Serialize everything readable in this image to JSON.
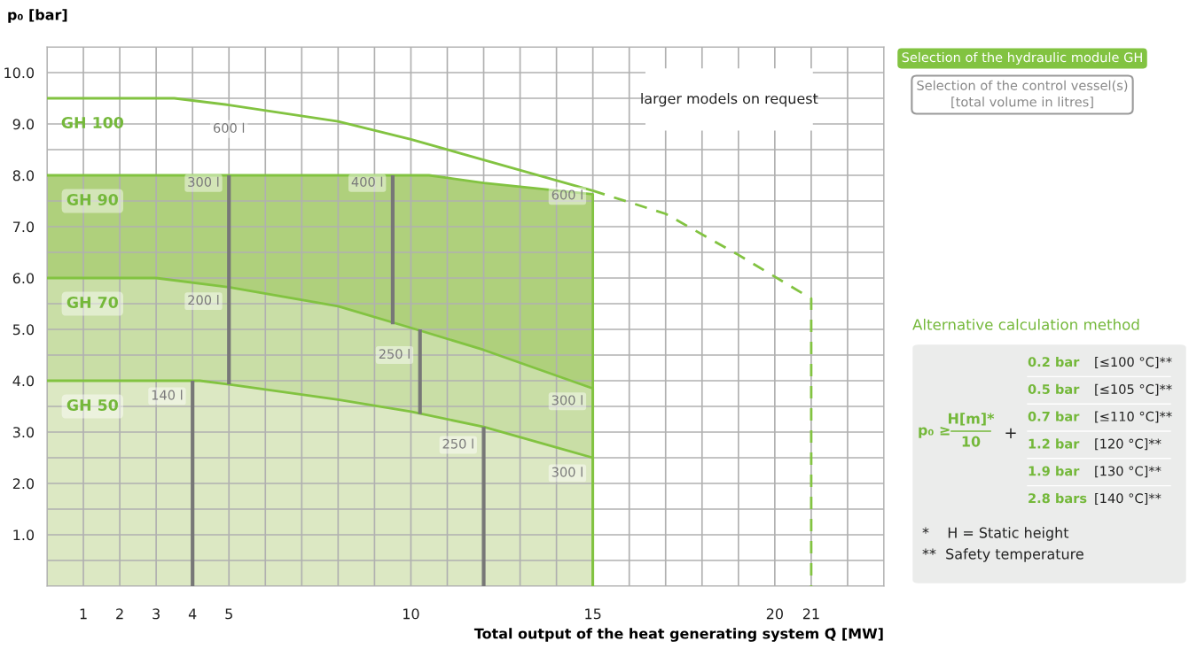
{
  "chart_data": {
    "type": "area",
    "xlabel": "Total output of the heat generating system Q̇ [MW]",
    "ylabel": "p₀ [bar]",
    "xlim": [
      0,
      23
    ],
    "ylim": [
      0,
      10.5
    ],
    "xticks": [
      {
        "value": 0,
        "label": null
      },
      1,
      2,
      3,
      4,
      5,
      {
        "value": 6,
        "label": null
      },
      {
        "value": 7,
        "label": null
      },
      {
        "value": 8,
        "label": null
      },
      {
        "value": 9,
        "label": null
      },
      10,
      {
        "value": 11,
        "label": null
      },
      {
        "value": 12,
        "label": null
      },
      {
        "value": 13,
        "label": null
      },
      {
        "value": 14,
        "label": null
      },
      15,
      {
        "value": 16,
        "label": null
      },
      {
        "value": 17,
        "label": null
      },
      {
        "value": 18,
        "label": null
      },
      {
        "value": 19,
        "label": null
      },
      20,
      21,
      {
        "value": 22,
        "label": null
      },
      {
        "value": 23,
        "label": null
      }
    ],
    "yticks": [
      {
        "value": 0,
        "label": null
      },
      {
        "value": 0.5,
        "label": null
      },
      {
        "value": 1,
        "label": "1.0"
      },
      {
        "value": 1.5,
        "label": null
      },
      {
        "value": 2,
        "label": "2.0"
      },
      {
        "value": 2.5,
        "label": null
      },
      {
        "value": 3,
        "label": "3.0"
      },
      {
        "value": 3.5,
        "label": null
      },
      {
        "value": 4,
        "label": "4.0"
      },
      {
        "value": 4.5,
        "label": null
      },
      {
        "value": 5,
        "label": "5.0"
      },
      {
        "value": 5.5,
        "label": null
      },
      {
        "value": 6,
        "label": "6.0"
      },
      {
        "value": 6.5,
        "label": null
      },
      {
        "value": 7,
        "label": "7.0"
      },
      {
        "value": 7.5,
        "label": null
      },
      {
        "value": 8,
        "label": "8.0"
      },
      {
        "value": 8.5,
        "label": null
      },
      {
        "value": 9,
        "label": "9.0"
      },
      {
        "value": 9.5,
        "label": null
      },
      {
        "value": 10,
        "label": "10.0"
      },
      {
        "value": 10.5,
        "label": null
      }
    ],
    "grid": true,
    "series": [
      {
        "name": "GH 100",
        "type": "line",
        "color": "#82c341",
        "x": [
          0,
          3.5,
          5,
          8,
          10,
          12,
          15
        ],
        "values": [
          9.5,
          9.5,
          9.37,
          9.05,
          8.7,
          8.3,
          7.7
        ]
      },
      {
        "type": "line",
        "line_style": "dashed",
        "color": "#82c341",
        "x": [
          15,
          17,
          19,
          21,
          21
        ],
        "values": [
          7.7,
          7.25,
          6.45,
          5.6,
          0
        ]
      },
      {
        "name": "GH 90",
        "color": "#afd07c",
        "x": [
          0,
          10.5,
          12,
          15
        ],
        "values": [
          8,
          8,
          7.85,
          7.63
        ]
      },
      {
        "name": "GH 70",
        "color": "#c9dea6",
        "x": [
          0,
          3,
          5,
          8,
          10,
          12,
          15
        ],
        "values": [
          6,
          6,
          5.82,
          5.45,
          5.03,
          4.6,
          3.85
        ]
      },
      {
        "name": "GH 50",
        "color": "#dce8c3",
        "x": [
          0,
          4.2,
          5,
          8,
          10,
          12,
          15
        ],
        "values": [
          4,
          4,
          3.93,
          3.63,
          3.4,
          3.1,
          2.5
        ]
      },
      {
        "type": "line",
        "color": "#777777",
        "x": [
          4,
          4
        ],
        "values": [
          0,
          4
        ]
      },
      {
        "type": "line",
        "color": "#777777",
        "x": [
          5,
          5
        ],
        "values": [
          3.93,
          8
        ]
      },
      {
        "type": "line",
        "color": "#777777",
        "x": [
          9.5,
          9.5
        ],
        "values": [
          5.1,
          8
        ]
      },
      {
        "type": "line",
        "color": "#777777",
        "x": [
          10.25,
          10.25
        ],
        "values": [
          3.35,
          5.0
        ]
      },
      {
        "type": "line",
        "color": "#777777",
        "x": [
          12,
          12
        ],
        "values": [
          0,
          3.1
        ]
      }
    ],
    "annotations": [
      "larger models on request",
      "Selection of the hydraulic module GH",
      "Selection of the control vessel(s)\n[total volume in litres]",
      "Alternative calculation method",
      "p₀ ≥",
      "H[m]*",
      "10",
      "+",
      "0.2 bar",
      "[≤100 °C]**",
      "0.5 bar",
      "[≤105 °C]**",
      "0.7 bar",
      "[≤110 °C]**",
      "1.2 bar",
      "[120 °C]**",
      "1.9 bar",
      "[130 °C]**",
      "2.8 bars",
      "[140 °C]**",
      "*    H = Static height",
      "**  Safety temperature",
      {
        "text": "600 l",
        "x": 5,
        "y": 8.9
      },
      {
        "text": "300 l",
        "x": 4.3,
        "y": 7.85
      },
      {
        "text": "400 l",
        "x": 8.8,
        "y": 7.85
      },
      {
        "text": "600 l",
        "x": 14.3,
        "y": 7.6
      },
      {
        "text": "200 l",
        "x": 4.3,
        "y": 5.55
      },
      {
        "text": "250 l",
        "x": 9.55,
        "y": 4.5
      },
      {
        "text": "140 l",
        "x": 3.3,
        "y": 3.7
      },
      {
        "text": "300 l",
        "x": 14.3,
        "y": 3.6
      },
      {
        "text": "250 l",
        "x": 11.3,
        "y": 2.75
      },
      {
        "text": "300 l",
        "x": 14.3,
        "y": 2.2
      }
    ]
  }
}
